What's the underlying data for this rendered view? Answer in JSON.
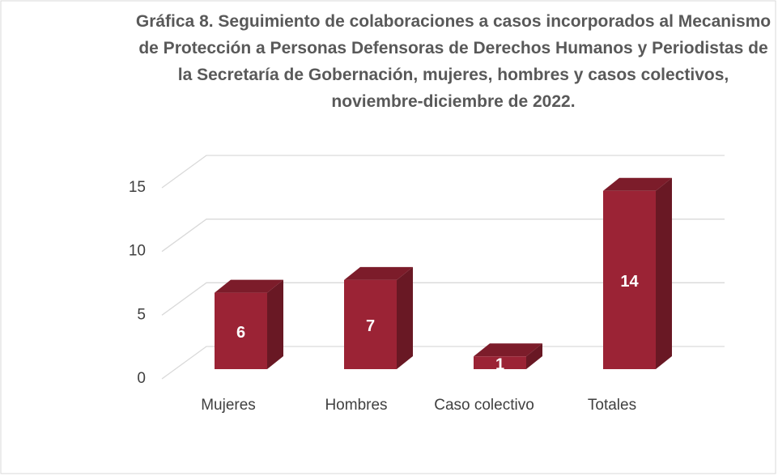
{
  "chart_data": {
    "type": "bar3d",
    "title": "Gráfica 8.  Seguimiento de colaboraciones a casos incorporados al Mecanismo de Protección a Personas Defensoras de Derechos Humanos y Periodistas de la Secretaría de Gobernación, mujeres, hombres y casos colectivos, noviembre-diciembre de 2022.",
    "categories": [
      "Mujeres",
      "Hombres",
      "Caso colectivo",
      "Totales"
    ],
    "values": [
      6,
      7,
      1,
      14
    ],
    "color": "#9b2335",
    "ylim": [
      0,
      15
    ],
    "yticks": [
      0,
      5,
      10,
      15
    ],
    "grid": true
  }
}
